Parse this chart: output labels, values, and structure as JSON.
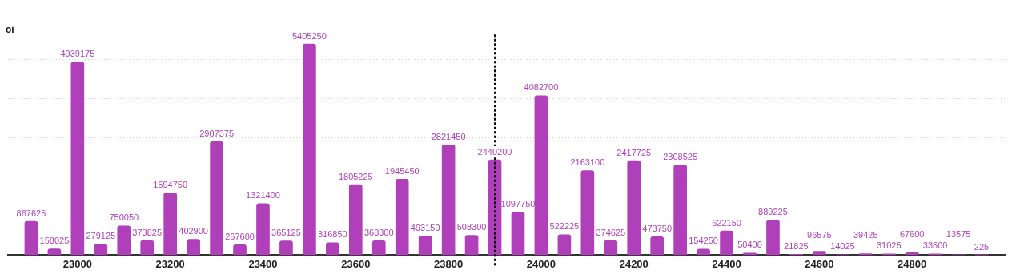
{
  "chart_data": {
    "type": "bar",
    "ylabel": "oi",
    "x": [
      22900,
      22950,
      23000,
      23050,
      23100,
      23150,
      23200,
      23250,
      23300,
      23350,
      23400,
      23450,
      23500,
      23550,
      23600,
      23650,
      23700,
      23750,
      23800,
      23850,
      23900,
      23950,
      24000,
      24050,
      24100,
      24150,
      24200,
      24250,
      24300,
      24350,
      24400,
      24450,
      24500,
      24550,
      24600,
      24650,
      24700,
      24750,
      24800,
      24850,
      24900,
      24950
    ],
    "series": [
      {
        "color": "#b03fba",
        "values": [
          867625,
          158025,
          4939175,
          279125,
          750050,
          373825,
          1594750,
          402900,
          2907375,
          267600,
          1321400,
          365125,
          5405250,
          316850,
          1805225,
          368300,
          1945450,
          493150,
          2821450,
          508300,
          2440200,
          1097750,
          4082700,
          522225,
          2163100,
          374625,
          2417725,
          473750,
          2308525,
          154250,
          622150,
          50400,
          889225,
          21825,
          96575,
          14025,
          39425,
          31025,
          67600,
          33500,
          13575,
          225
        ]
      }
    ],
    "xlim": [
      22850,
      25000
    ],
    "xticks": [
      23000,
      23200,
      23400,
      23600,
      23800,
      24000,
      24200,
      24400,
      24600,
      24800
    ],
    "yticks": [
      {
        "value": 0,
        "label": null
      },
      {
        "value": 1000000,
        "label": null
      },
      {
        "value": 2000000,
        "label": null
      },
      {
        "value": 3000000,
        "label": null
      },
      {
        "value": 4000000,
        "label": null
      },
      {
        "value": 5000000,
        "label": null
      }
    ],
    "tick_labels": "x",
    "grid": "y",
    "legend": false,
    "data_labels": true,
    "ref_lines": [
      {
        "axis": "x",
        "value": 23900,
        "color": "#000000",
        "line_style": "dotted"
      }
    ]
  }
}
